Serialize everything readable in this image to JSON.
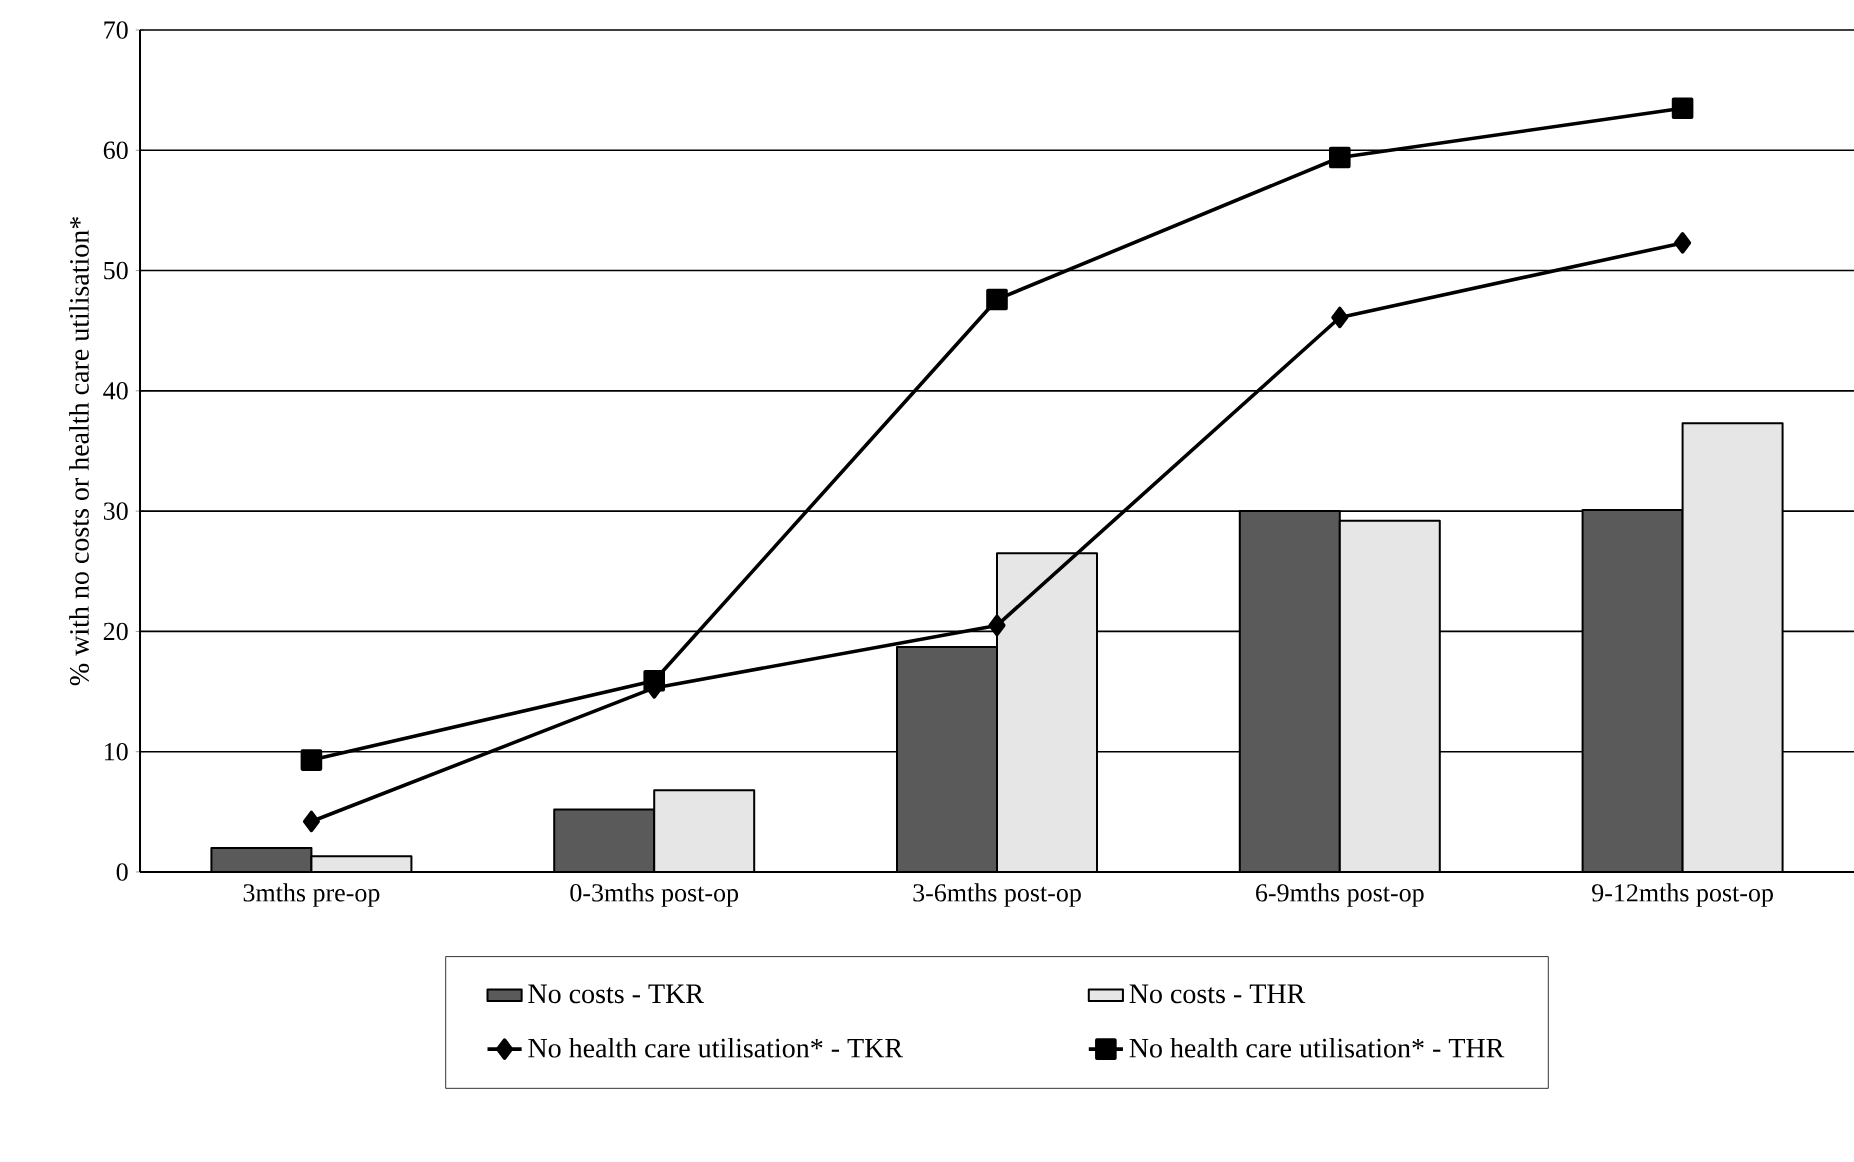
{
  "chart_data": {
    "type": "bar",
    "ylabel": "% with no costs or health care utilisation*",
    "categories": [
      "3mths pre-op",
      "0-3mths post-op",
      "3-6mths post-op",
      "6-9mths post-op",
      "9-12mths post-op"
    ],
    "series": [
      {
        "name": "No costs - TKR",
        "color": "#5a5a5a",
        "values": [
          2.0,
          5.2,
          18.7,
          30.0,
          30.1
        ]
      },
      {
        "name": "No costs - THR",
        "color": "#e6e6e6",
        "values": [
          1.3,
          6.8,
          26.5,
          29.2,
          37.3
        ]
      },
      {
        "name": "No health care utilisation* - TKR",
        "type": "line",
        "marker": "diamond",
        "color": "#000000",
        "values": [
          4.2,
          15.3,
          20.5,
          46.1,
          52.3
        ]
      },
      {
        "name": "No health care utilisation* - THR",
        "type": "line",
        "marker": "square",
        "color": "#000000",
        "values": [
          9.3,
          15.9,
          47.6,
          59.4,
          63.5
        ]
      }
    ],
    "ylim": [
      0,
      70
    ],
    "yticks": [
      0,
      10,
      20,
      30,
      40,
      50,
      60,
      70
    ],
    "grid": "y",
    "legend": "bottom"
  }
}
